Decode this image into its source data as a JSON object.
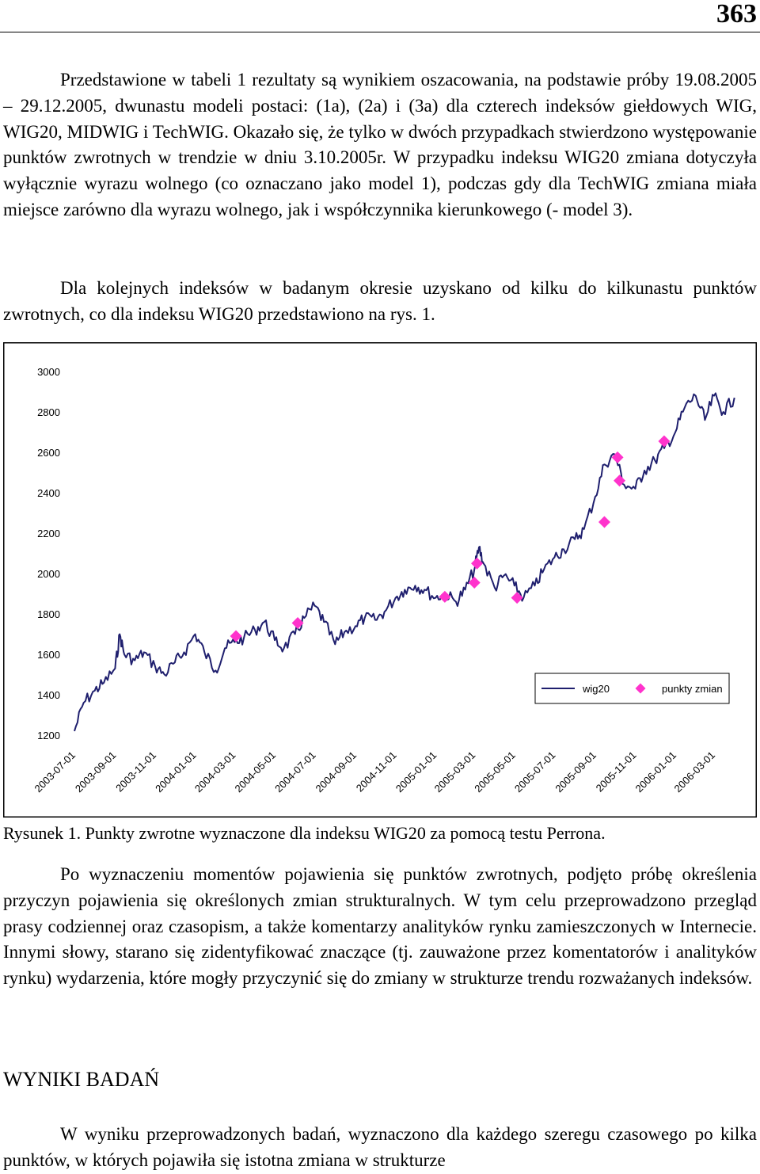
{
  "page_number": "363",
  "paragraphs": {
    "p1": "Przedstawione w tabeli 1 rezultaty są wynikiem oszacowania, na podstawie próby 19.08.2005 – 29.12.2005, dwunastu modeli postaci: (1a), (2a) i (3a) dla czterech indeksów giełdowych WIG, WIG20, MIDWIG i TechWIG. Okazało się, że tylko w dwóch przypadkach stwierdzono występowanie punktów zwrotnych w trendzie w dniu 3.10.2005r. W przypadku indeksu WIG20 zmiana dotyczyła wyłącznie wyrazu wolnego (co oznaczano jako model 1), podczas gdy dla TechWIG zmiana miała miejsce zarówno dla wyrazu wolnego, jak i współczynnika kierunkowego (- model 3).",
    "p2": "Dla kolejnych indeksów w badanym okresie uzyskano od kilku do kilkunastu punktów zwrotnych, co dla indeksu WIG20 przedstawiono na rys. 1.",
    "p3": "Po wyznaczeniu momentów pojawienia się punktów zwrotnych, podjęto próbę określenia przyczyn pojawienia się określonych zmian strukturalnych. W tym celu przeprowadzono przegląd prasy codziennej oraz czasopism, a także komentarzy analityków rynku zamieszczonych w Internecie. Innymi słowy, starano się zidentyfikować znaczące (tj. zauważone przez komentatorów i analityków rynku) wydarzenia, które mogły przyczynić się do zmiany w strukturze trendu rozważanych indeksów.",
    "heading": "WYNIKI BADAŃ",
    "p4": "W wyniku przeprowadzonych badań, wyznaczono dla każdego szeregu czasowego po kilka punktów, w których pojawiła się istotna zmiana w strukturze"
  },
  "caption": "Rysunek 1. Punkty zwrotne wyznaczone dla indeksu WIG20 za pomocą testu Perrona.",
  "colors": {
    "line": "#1f1f6e",
    "marker": "#ff33cc"
  },
  "chart_data": {
    "type": "line",
    "title": "",
    "xlabel": "",
    "ylabel": "",
    "ylim": [
      1200,
      3000
    ],
    "y_ticks": [
      "3000",
      "2800",
      "2600",
      "2400",
      "2200",
      "2000",
      "1800",
      "1600",
      "1400",
      "1200"
    ],
    "x_ticks": [
      "2003-07-01",
      "2003-09-01",
      "2003-11-01",
      "2004-01-01",
      "2004-03-01",
      "2004-05-01",
      "2004-07-01",
      "2004-09-01",
      "2004-11-01",
      "2005-01-01",
      "2005-03-01",
      "2005-05-01",
      "2005-07-01",
      "2005-09-01",
      "2005-11-01",
      "2006-01-01",
      "2006-03-01"
    ],
    "legend": {
      "placement": "bottom-right",
      "entries": [
        "wig20",
        "punkty zmian"
      ]
    },
    "series": [
      {
        "name": "wig20",
        "kind": "line",
        "points": [
          [
            "2003-07-01",
            1220
          ],
          [
            "2003-07-15",
            1360
          ],
          [
            "2003-08-01",
            1420
          ],
          [
            "2003-08-15",
            1460
          ],
          [
            "2003-09-01",
            1530
          ],
          [
            "2003-09-08",
            1700
          ],
          [
            "2003-09-15",
            1600
          ],
          [
            "2003-10-01",
            1570
          ],
          [
            "2003-10-15",
            1610
          ],
          [
            "2003-11-01",
            1540
          ],
          [
            "2003-11-15",
            1500
          ],
          [
            "2003-12-01",
            1560
          ],
          [
            "2003-12-15",
            1610
          ],
          [
            "2004-01-01",
            1700
          ],
          [
            "2004-01-15",
            1610
          ],
          [
            "2004-02-01",
            1520
          ],
          [
            "2004-02-15",
            1630
          ],
          [
            "2004-03-01",
            1660
          ],
          [
            "2004-03-15",
            1680
          ],
          [
            "2004-04-01",
            1720
          ],
          [
            "2004-04-15",
            1760
          ],
          [
            "2004-05-01",
            1670
          ],
          [
            "2004-05-15",
            1630
          ],
          [
            "2004-06-01",
            1700
          ],
          [
            "2004-06-15",
            1780
          ],
          [
            "2004-07-01",
            1840
          ],
          [
            "2004-07-15",
            1760
          ],
          [
            "2004-08-01",
            1650
          ],
          [
            "2004-08-15",
            1710
          ],
          [
            "2004-09-01",
            1740
          ],
          [
            "2004-09-15",
            1780
          ],
          [
            "2004-10-01",
            1770
          ],
          [
            "2004-10-15",
            1810
          ],
          [
            "2004-11-01",
            1880
          ],
          [
            "2004-11-15",
            1920
          ],
          [
            "2004-12-01",
            1940
          ],
          [
            "2004-12-15",
            1920
          ],
          [
            "2005-01-01",
            1880
          ],
          [
            "2005-01-15",
            1900
          ],
          [
            "2005-02-01",
            1860
          ],
          [
            "2005-02-15",
            1920
          ],
          [
            "2005-03-01",
            2020
          ],
          [
            "2005-03-08",
            2130
          ],
          [
            "2005-03-15",
            2050
          ],
          [
            "2005-04-01",
            1930
          ],
          [
            "2005-04-15",
            1990
          ],
          [
            "2005-05-01",
            1940
          ],
          [
            "2005-05-15",
            1880
          ],
          [
            "2005-06-01",
            1940
          ],
          [
            "2005-06-15",
            2020
          ],
          [
            "2005-07-01",
            2080
          ],
          [
            "2005-07-15",
            2120
          ],
          [
            "2005-08-01",
            2170
          ],
          [
            "2005-08-15",
            2220
          ],
          [
            "2005-09-01",
            2380
          ],
          [
            "2005-09-15",
            2540
          ],
          [
            "2005-10-01",
            2590
          ],
          [
            "2005-10-15",
            2440
          ],
          [
            "2005-11-01",
            2420
          ],
          [
            "2005-11-15",
            2510
          ],
          [
            "2005-12-01",
            2560
          ],
          [
            "2005-12-15",
            2620
          ],
          [
            "2006-01-01",
            2700
          ],
          [
            "2006-01-15",
            2820
          ],
          [
            "2006-02-01",
            2880
          ],
          [
            "2006-02-15",
            2760
          ],
          [
            "2006-03-01",
            2880
          ],
          [
            "2006-03-15",
            2800
          ],
          [
            "2006-04-01",
            2870
          ]
        ]
      },
      {
        "name": "punkty zmian",
        "kind": "marker",
        "points": [
          [
            "2004-03-03",
            1690
          ],
          [
            "2004-06-05",
            1755
          ],
          [
            "2005-01-15",
            1885
          ],
          [
            "2005-03-01",
            1955
          ],
          [
            "2005-03-05",
            2050
          ],
          [
            "2005-05-05",
            1880
          ],
          [
            "2005-09-15",
            2255
          ],
          [
            "2005-10-05",
            2575
          ],
          [
            "2005-10-08",
            2460
          ],
          [
            "2005-12-15",
            2655
          ]
        ]
      }
    ]
  }
}
